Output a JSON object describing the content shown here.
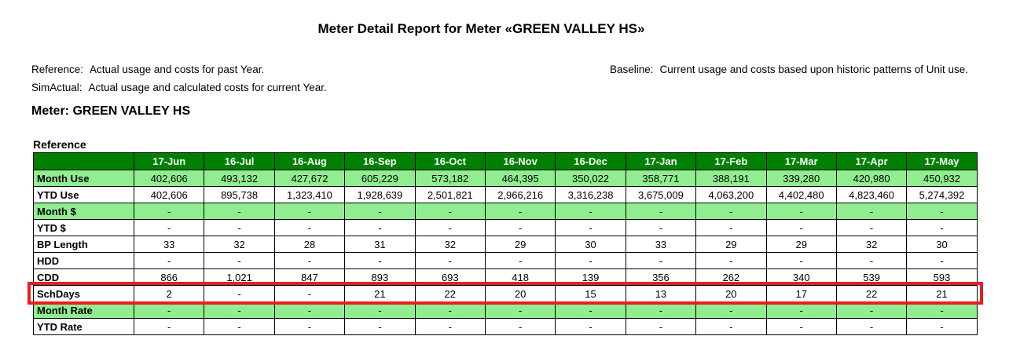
{
  "title": "Meter Detail Report for Meter «GREEN VALLEY HS»",
  "legend": {
    "reference_label": "Reference:",
    "reference_text": "Actual usage and costs for past Year.",
    "simactual_label": "SimActual:",
    "simactual_text": "Actual usage and calculated costs for current Year.",
    "baseline_label": "Baseline:",
    "baseline_text": "Current usage and costs based upon historic patterns of Unit use."
  },
  "meter_heading": "Meter: GREEN VALLEY HS",
  "section_heading": "Reference",
  "colors": {
    "header_bg": "#008000",
    "row_green": "#90EE90",
    "row_white": "#FFFFFF",
    "highlight_red": "#EA1C24"
  },
  "chart_data": {
    "type": "table",
    "title": "Reference",
    "categories": [
      "17-Jun",
      "16-Jul",
      "16-Aug",
      "16-Sep",
      "16-Oct",
      "16-Nov",
      "16-Dec",
      "17-Jan",
      "17-Feb",
      "17-Mar",
      "17-Apr",
      "17-May"
    ],
    "rows": [
      {
        "label": "Month Use",
        "shade": "green",
        "highlighted": false,
        "values": [
          "402,606",
          "493,132",
          "427,672",
          "605,229",
          "573,182",
          "464,395",
          "350,022",
          "358,771",
          "388,191",
          "339,280",
          "420,980",
          "450,932"
        ]
      },
      {
        "label": "YTD Use",
        "shade": "white",
        "highlighted": false,
        "values": [
          "402,606",
          "895,738",
          "1,323,410",
          "1,928,639",
          "2,501,821",
          "2,966,216",
          "3,316,238",
          "3,675,009",
          "4,063,200",
          "4,402,480",
          "4,823,460",
          "5,274,392"
        ]
      },
      {
        "label": "Month $",
        "shade": "green",
        "highlighted": false,
        "values": [
          "-",
          "-",
          "-",
          "-",
          "-",
          "-",
          "-",
          "-",
          "-",
          "-",
          "-",
          "-"
        ]
      },
      {
        "label": "YTD $",
        "shade": "white",
        "highlighted": false,
        "values": [
          "-",
          "-",
          "-",
          "-",
          "-",
          "-",
          "-",
          "-",
          "-",
          "-",
          "-",
          "-"
        ]
      },
      {
        "label": "BP Length",
        "shade": "white",
        "highlighted": false,
        "values": [
          "33",
          "32",
          "28",
          "31",
          "32",
          "29",
          "30",
          "33",
          "29",
          "29",
          "32",
          "30"
        ]
      },
      {
        "label": "HDD",
        "shade": "white",
        "highlighted": false,
        "values": [
          "-",
          "-",
          "-",
          "-",
          "-",
          "-",
          "-",
          "-",
          "-",
          "-",
          "-",
          "-"
        ]
      },
      {
        "label": "CDD",
        "shade": "white",
        "highlighted": false,
        "values": [
          "866",
          "1,021",
          "847",
          "893",
          "693",
          "418",
          "139",
          "356",
          "262",
          "340",
          "539",
          "593"
        ]
      },
      {
        "label": "SchDays",
        "shade": "white",
        "highlighted": true,
        "values": [
          "2",
          "-",
          "-",
          "21",
          "22",
          "20",
          "15",
          "13",
          "20",
          "17",
          "22",
          "21"
        ]
      },
      {
        "label": "Month Rate",
        "shade": "green",
        "highlighted": false,
        "values": [
          "-",
          "-",
          "-",
          "-",
          "-",
          "-",
          "-",
          "-",
          "-",
          "-",
          "-",
          "-"
        ]
      },
      {
        "label": "YTD Rate",
        "shade": "white",
        "highlighted": false,
        "values": [
          "-",
          "-",
          "-",
          "-",
          "-",
          "-",
          "-",
          "-",
          "-",
          "-",
          "-",
          "-"
        ]
      }
    ]
  }
}
